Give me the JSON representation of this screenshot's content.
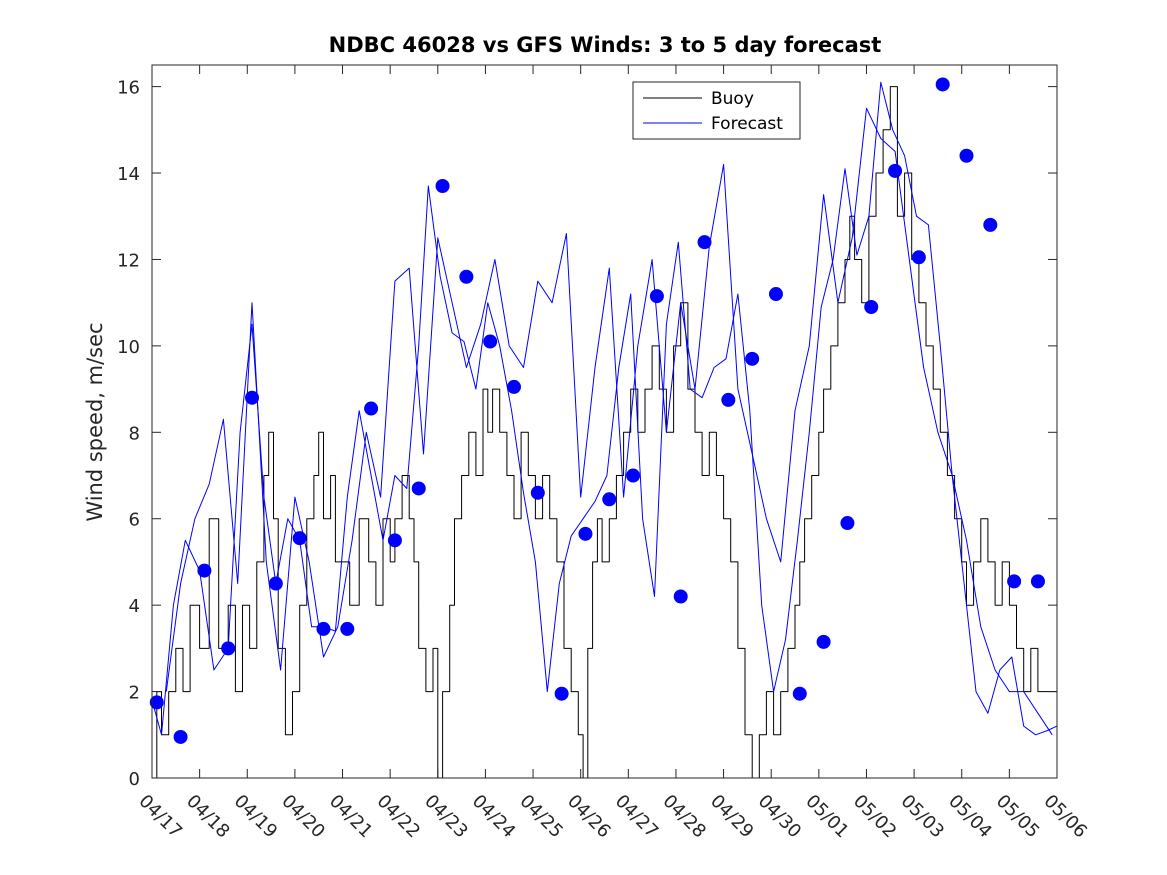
{
  "chart_data": {
    "type": "line",
    "title": "NDBC 46028 vs GFS Winds: 3 to 5 day forecast",
    "xlabel": "",
    "ylabel": "Wind speed, m/sec",
    "x_ticks": [
      "04/17",
      "04/18",
      "04/19",
      "04/20",
      "04/21",
      "04/22",
      "04/23",
      "04/24",
      "04/25",
      "04/26",
      "04/27",
      "04/28",
      "04/29",
      "04/30",
      "05/01",
      "05/02",
      "05/03",
      "05/04",
      "05/05",
      "05/06"
    ],
    "xlim": [
      0,
      19
    ],
    "ylim": [
      0,
      16.5
    ],
    "y_ticks": [
      0,
      2,
      4,
      6,
      8,
      10,
      12,
      14,
      16
    ],
    "legend": {
      "placement": "top-center",
      "entries": [
        "Buoy",
        "Forecast"
      ]
    },
    "colors": {
      "buoy": "#000000",
      "forecast": "#0000ff",
      "axis": "#262626"
    },
    "series": [
      {
        "name": "Buoy",
        "x": [
          0,
          0.1,
          0.2,
          0.35,
          0.5,
          0.65,
          0.8,
          1.0,
          1.2,
          1.4,
          1.6,
          1.75,
          1.9,
          2.05,
          2.2,
          2.35,
          2.45,
          2.55,
          2.65,
          2.8,
          2.95,
          3.1,
          3.25,
          3.4,
          3.5,
          3.6,
          3.75,
          3.85,
          4.0,
          4.15,
          4.35,
          4.55,
          4.7,
          4.85,
          5.0,
          5.1,
          5.25,
          5.4,
          5.5,
          5.6,
          5.75,
          5.9,
          6.0,
          6.1,
          6.25,
          6.35,
          6.5,
          6.65,
          6.8,
          6.95,
          7.05,
          7.15,
          7.3,
          7.45,
          7.6,
          7.75,
          7.9,
          8.05,
          8.2,
          8.35,
          8.5,
          8.65,
          8.8,
          8.95,
          9.05,
          9.15,
          9.25,
          9.35,
          9.45,
          9.6,
          9.75,
          9.9,
          10.05,
          10.2,
          10.35,
          10.5,
          10.65,
          10.8,
          10.95,
          11.1,
          11.25,
          11.4,
          11.55,
          11.7,
          11.85,
          12.0,
          12.15,
          12.3,
          12.45,
          12.6,
          12.75,
          12.9,
          13.05,
          13.2,
          13.35,
          13.5,
          13.6,
          13.7,
          13.85,
          14.0,
          14.1,
          14.25,
          14.4,
          14.55,
          14.65,
          14.75,
          14.9,
          15.05,
          15.2,
          15.35,
          15.5,
          15.65,
          15.8,
          15.95,
          16.1,
          16.25,
          16.4,
          16.55,
          16.7,
          16.85,
          17.0,
          17.1,
          17.25,
          17.4,
          17.55,
          17.7,
          17.85,
          18.0,
          18.15,
          18.3,
          18.45,
          18.6,
          18.75,
          18.9,
          19.0
        ],
        "y": [
          0,
          2,
          1,
          2,
          3,
          2,
          4,
          3,
          6,
          3,
          4,
          2,
          4,
          3,
          5,
          7,
          8,
          6,
          3,
          1,
          2,
          4,
          6,
          7,
          8,
          6,
          7,
          5,
          5,
          4,
          6,
          5,
          4,
          6,
          5,
          6,
          7,
          6,
          5,
          3,
          2,
          3,
          0,
          2,
          4,
          6,
          7,
          8,
          7,
          9,
          8,
          9,
          8,
          7,
          6,
          8,
          7,
          6,
          7,
          6,
          5,
          3,
          2,
          1,
          0,
          3,
          5,
          6,
          5,
          6,
          7,
          8,
          9,
          8,
          9,
          10,
          9,
          8,
          10,
          11,
          9,
          8,
          7,
          8,
          7,
          6,
          5,
          3,
          1,
          0,
          1,
          2,
          1,
          2,
          3,
          4,
          5,
          6,
          7,
          8,
          9,
          10,
          11,
          12,
          13,
          12,
          11,
          13,
          14,
          15,
          16,
          13,
          14,
          12,
          11,
          10,
          9,
          8,
          7,
          6,
          5,
          4,
          5,
          6,
          5,
          4,
          5,
          4,
          3,
          2,
          3,
          2,
          2,
          2,
          2
        ]
      },
      {
        "name": "Forecast",
        "x": [
          0,
          0.2,
          0.45,
          0.7,
          1.0,
          1.3,
          1.6,
          1.85,
          2.1,
          2.35,
          2.6,
          2.85,
          3.1,
          3.35,
          3.6,
          3.85,
          4.1,
          4.35,
          4.6,
          4.85,
          5.1,
          5.35,
          5.6,
          5.8,
          6.05,
          6.3,
          6.55,
          6.8,
          7.05,
          7.3,
          7.55,
          7.8,
          8.05,
          8.3,
          8.55,
          8.8,
          9.05,
          9.3,
          9.55,
          9.8,
          10.05,
          10.3,
          10.55,
          10.8,
          11.05,
          11.3,
          11.55,
          11.8,
          12.05,
          12.3,
          12.55,
          12.8,
          13.05,
          13.3,
          13.55,
          13.8,
          14.05,
          14.3,
          14.55,
          14.8,
          15.05,
          15.3,
          15.55,
          15.8,
          16.05,
          16.3,
          16.55,
          16.8,
          17.05,
          17.3,
          17.55,
          17.8,
          18.05,
          18.3,
          18.55,
          18.8,
          19.0
        ],
        "y": [
          1.8,
          1.0,
          4.0,
          5.5,
          4.8,
          2.5,
          3.0,
          8.0,
          10.5,
          6.5,
          4.5,
          6.0,
          5.5,
          3.5,
          3.5,
          3.4,
          6.5,
          8.5,
          7.0,
          5.5,
          7.0,
          6.7,
          10.0,
          13.7,
          11.6,
          10.3,
          10.1,
          9.0,
          11.0,
          10.0,
          8.5,
          6.6,
          5.0,
          2.0,
          4.5,
          5.6,
          6.0,
          6.4,
          7.0,
          9.5,
          11.2,
          6.0,
          4.2,
          10.5,
          12.4,
          9.0,
          8.8,
          9.5,
          9.7,
          11.2,
          8.5,
          4.0,
          2.0,
          3.2,
          5.5,
          8.0,
          10.9,
          12.0,
          14.1,
          12.1,
          13.0,
          16.1,
          15.0,
          14.4,
          13.0,
          12.8,
          10.0,
          7.0,
          4.5,
          2.0,
          1.5,
          2.5,
          2.8,
          1.2,
          1.0,
          1.1,
          1.2
        ]
      },
      {
        "name": "",
        "x": [
          0.3,
          0.6,
          0.9,
          1.2,
          1.5,
          1.8,
          2.1,
          2.4,
          2.7,
          3.0,
          3.3,
          3.6,
          3.9,
          4.2,
          4.5,
          4.8,
          5.1,
          5.4,
          5.7,
          6.0,
          6.3,
          6.6,
          6.9,
          7.2,
          7.5,
          7.8,
          8.1,
          8.4,
          8.7,
          9.0,
          9.3,
          9.6,
          9.9,
          10.2,
          10.5,
          10.8,
          11.1,
          11.4,
          11.7,
          12.0,
          12.3,
          12.6,
          12.9,
          13.2,
          13.5,
          13.8,
          14.1,
          14.4,
          14.7,
          15.0,
          15.3,
          15.6,
          15.9,
          16.2,
          16.5,
          16.8,
          17.1,
          17.4,
          17.7,
          18.0,
          18.3,
          18.6,
          18.9
        ],
        "y": [
          2.0,
          4.5,
          6.0,
          6.8,
          8.3,
          4.5,
          11.0,
          5.0,
          2.5,
          6.5,
          5.0,
          2.8,
          3.5,
          5.5,
          8.0,
          6.5,
          11.5,
          11.8,
          7.5,
          12.5,
          11.0,
          9.5,
          10.5,
          12.0,
          10.0,
          9.5,
          11.5,
          11.0,
          12.6,
          6.5,
          9.5,
          11.8,
          6.5,
          10.0,
          12.0,
          8.0,
          11.0,
          9.0,
          12.3,
          14.2,
          9.0,
          7.5,
          6.0,
          5.0,
          8.5,
          10.0,
          13.5,
          11.0,
          12.5,
          15.5,
          14.8,
          14.5,
          12.0,
          9.5,
          8.0,
          7.0,
          5.5,
          3.5,
          2.5,
          2.0,
          2.0,
          1.5,
          1.0
        ]
      }
    ],
    "markers": {
      "series": "Forecast",
      "x": [
        0.1,
        0.6,
        1.1,
        1.6,
        2.1,
        2.6,
        3.1,
        3.6,
        4.1,
        4.6,
        5.1,
        5.6,
        6.1,
        6.6,
        7.1,
        7.6,
        8.1,
        8.6,
        9.1,
        9.6,
        10.1,
        10.6,
        11.1,
        11.6,
        12.1,
        12.6,
        13.1,
        13.6,
        14.1,
        14.6,
        15.1,
        15.6,
        16.1,
        16.6,
        17.1,
        17.6,
        18.1,
        18.6
      ],
      "y": [
        1.75,
        0.95,
        4.8,
        3.0,
        8.8,
        4.5,
        5.55,
        3.45,
        3.45,
        8.55,
        5.5,
        6.7,
        13.7,
        11.6,
        10.1,
        9.05,
        6.6,
        1.95,
        5.65,
        6.45,
        7.0,
        11.15,
        4.2,
        12.4,
        8.75,
        9.7,
        11.2,
        1.95,
        3.15,
        5.9,
        10.9,
        14.05,
        12.05,
        16.05,
        14.4,
        12.8,
        4.55,
        4.55
      ]
    }
  }
}
